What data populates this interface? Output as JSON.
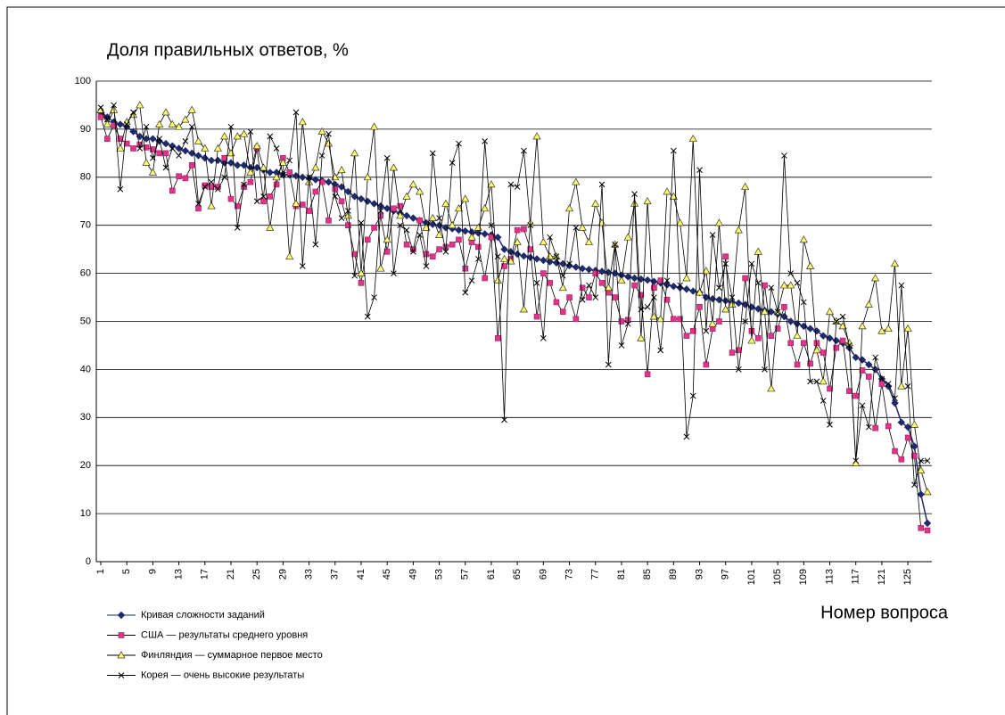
{
  "chart_data": {
    "type": "line",
    "title": "Доля правильных ответов, %",
    "x_label": "Номер вопроса",
    "categories": [
      "1",
      null,
      null,
      null,
      "5",
      null,
      null,
      null,
      "9",
      null,
      null,
      null,
      "13",
      null,
      null,
      null,
      "17",
      null,
      null,
      null,
      "21",
      null,
      null,
      null,
      "25",
      null,
      null,
      null,
      "29",
      null,
      null,
      null,
      "33",
      null,
      null,
      null,
      "37",
      null,
      null,
      null,
      "41",
      null,
      null,
      null,
      "45",
      null,
      null,
      null,
      "49",
      null,
      null,
      null,
      "53",
      null,
      null,
      null,
      "57",
      null,
      null,
      null,
      "61",
      null,
      null,
      null,
      "65",
      null,
      null,
      null,
      "69",
      null,
      null,
      null,
      "73",
      null,
      null,
      null,
      "77",
      null,
      null,
      null,
      "81",
      null,
      null,
      null,
      "85",
      null,
      null,
      null,
      "89",
      null,
      null,
      null,
      "93",
      null,
      null,
      null,
      "97",
      null,
      null,
      null,
      "101",
      null,
      null,
      null,
      "105",
      null,
      null,
      null,
      "109",
      null,
      null,
      null,
      "113",
      null,
      null,
      null,
      "117",
      null,
      null,
      null,
      "121",
      null,
      null,
      null,
      "125",
      null,
      null,
      null
    ],
    "ylim": [
      0,
      100
    ],
    "yticks": [
      0,
      10,
      20,
      30,
      40,
      50,
      60,
      70,
      80,
      90,
      100
    ],
    "grid": true,
    "legend": "bottom-left",
    "series": [
      {
        "name": "Кривая сложности заданий",
        "color": "#1f2a6b",
        "marker": "diamond",
        "values": [
          93.5,
          92.5,
          91.5,
          91,
          90.5,
          89.5,
          88.5,
          88,
          88,
          87.5,
          87,
          86.5,
          86,
          85.5,
          85,
          84.5,
          84,
          83.5,
          83.5,
          83,
          83,
          82.5,
          82.5,
          82,
          82,
          81.5,
          81,
          81,
          80.5,
          80.5,
          80.3,
          80,
          79.8,
          79.5,
          79.3,
          79,
          78.5,
          78,
          77,
          76,
          75.5,
          75,
          74.5,
          74,
          73.5,
          73,
          72.5,
          72,
          71.5,
          71,
          70.5,
          70.2,
          70,
          69.5,
          69.3,
          69,
          68.8,
          68.6,
          68.4,
          68.2,
          68,
          67.5,
          65,
          64.5,
          64,
          63.6,
          63.3,
          63,
          62.7,
          62.4,
          62.2,
          62,
          61.6,
          61.3,
          61,
          60.8,
          60.6,
          60.4,
          60.2,
          60,
          59.6,
          59.3,
          59,
          58.8,
          58.6,
          58.3,
          58,
          57.6,
          57.3,
          57,
          56.7,
          56.3,
          56,
          55,
          54.7,
          54.5,
          54.3,
          54,
          53.8,
          53.5,
          53,
          52.6,
          52.3,
          52,
          51.5,
          51,
          50,
          49.5,
          49,
          48.5,
          48,
          47,
          46.5,
          46,
          45.5,
          44.5,
          42.5,
          42,
          41,
          40,
          38,
          36.5,
          33,
          29,
          28,
          24,
          14,
          8
        ]
      },
      {
        "name": "США — результаты среднего уровня",
        "color": "#e0338a",
        "marker": "square",
        "values": [
          92.5,
          88,
          90.8,
          88,
          87,
          86,
          86.8,
          86.2,
          85.8,
          85,
          85,
          77.2,
          80.2,
          79.8,
          82.5,
          73.5,
          78.3,
          78,
          78,
          84,
          75.5,
          74,
          78,
          79,
          86,
          75,
          76,
          78.5,
          84,
          81,
          74,
          74.3,
          73,
          77,
          79,
          71,
          77.5,
          75,
          70,
          64,
          58,
          67,
          69.5,
          72,
          64.5,
          73.5,
          74,
          66,
          65,
          71,
          64,
          63.5,
          65,
          65.5,
          66,
          67,
          61,
          66.5,
          65.5,
          59,
          67.5,
          46.5,
          61.5,
          63,
          69,
          69.2,
          65,
          51,
          60,
          58,
          54,
          52,
          55,
          50.5,
          57,
          55,
          60,
          58,
          56,
          55,
          50,
          50.3,
          57.5,
          55.5,
          39,
          57,
          58.5,
          54.5,
          50.5,
          50.5,
          47,
          48,
          53,
          41,
          48.5,
          50,
          63.5,
          43.5,
          44,
          59,
          48,
          46.5,
          57.5,
          47,
          48.5,
          53,
          45.5,
          41,
          45.5,
          41.2,
          45.5,
          43.5,
          36,
          44.5,
          46,
          35.5,
          34.5,
          39.8,
          38.5,
          27.8,
          37,
          28.2,
          23,
          21.3,
          25.8,
          22,
          7,
          6.5
        ]
      },
      {
        "name": "Финляндия — суммарное первое место",
        "color": "#ffff66",
        "marker": "triangle",
        "values": [
          94,
          91,
          94,
          86,
          91.5,
          93,
          95,
          83,
          81,
          91,
          93.5,
          91,
          90.5,
          92,
          94,
          87.5,
          86,
          74,
          86,
          88.5,
          85,
          88.5,
          89,
          81,
          86.5,
          82,
          69.5,
          80,
          83,
          63.5,
          74.5,
          91.5,
          79,
          82,
          89.5,
          87,
          80,
          81.5,
          72,
          85,
          60,
          80,
          90.5,
          61,
          67,
          82,
          72,
          76,
          78.5,
          77,
          69.5,
          71.5,
          68,
          74.5,
          70,
          73.5,
          75.5,
          67.5,
          69.5,
          73.5,
          78.5,
          58.5,
          63,
          62.5,
          66.5,
          52.5,
          70.5,
          88.5,
          66.5,
          63.5,
          63.5,
          57,
          73.5,
          79,
          69.5,
          66.5,
          74.5,
          70.5,
          57,
          66,
          58.5,
          67.5,
          74.5,
          46.5,
          75,
          51,
          50.5,
          77,
          76,
          70.5,
          59,
          88,
          56,
          60.5,
          49.5,
          70.5,
          52.5,
          53.5,
          69,
          78,
          46,
          64.5,
          52,
          36,
          52,
          57.5,
          57.5,
          47,
          67,
          61.5,
          44,
          37.5,
          52,
          50,
          49,
          45.5,
          20.5,
          49,
          53.5,
          59,
          48,
          48.5,
          62,
          36.5,
          48.5,
          28.5,
          19,
          14.5
        ]
      },
      {
        "name": "Корея — очень высокие результаты",
        "color": "#000000",
        "marker": "cross",
        "values": [
          94.5,
          92,
          95,
          77.5,
          91,
          93.5,
          86,
          90.5,
          84,
          88,
          82,
          86,
          84.5,
          87.5,
          90.5,
          74.5,
          78,
          79,
          77.5,
          80,
          90.5,
          69.5,
          78.5,
          89.5,
          75,
          76,
          88.5,
          86,
          80.5,
          83.5,
          93.5,
          61.5,
          80,
          66,
          84.5,
          89,
          76,
          71.5,
          73,
          59.5,
          70.5,
          51,
          55,
          73,
          84,
          60,
          70,
          69,
          64.5,
          68,
          61.5,
          85,
          71.5,
          64.5,
          83,
          87,
          56,
          58.5,
          63,
          87.5,
          70,
          63.5,
          29.5,
          78.5,
          78,
          85.5,
          70,
          58,
          46.5,
          67.5,
          63.5,
          59.5,
          62,
          69.5,
          54.5,
          57.5,
          55,
          78.5,
          41,
          66,
          45,
          49.5,
          76.5,
          52.5,
          53,
          55,
          44,
          58.5,
          85.5,
          57.5,
          26,
          34.5,
          81.5,
          48,
          68,
          57,
          62,
          55,
          40,
          50,
          62,
          58,
          40,
          57,
          52,
          84.5,
          60,
          58,
          54,
          37.5,
          37.5,
          33.5,
          28.5,
          50,
          51,
          45,
          21,
          32.5,
          28,
          42.5,
          38,
          37,
          34,
          57.5,
          36.5,
          16,
          21,
          21
        ]
      }
    ]
  }
}
